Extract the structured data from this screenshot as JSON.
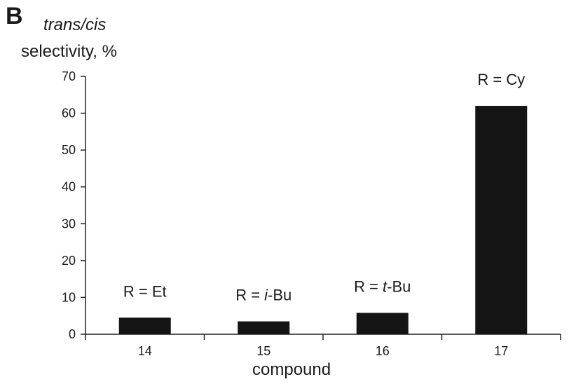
{
  "chart_data": {
    "type": "bar",
    "panel_label": "B",
    "ylabel_line1": "trans/cis",
    "ylabel_line2": "selectivity, %",
    "xlabel": "compound",
    "ylim": [
      0,
      70
    ],
    "yticks": [
      0,
      10,
      20,
      30,
      40,
      50,
      60,
      70
    ],
    "grid": false,
    "categories": [
      "14",
      "15",
      "16",
      "17"
    ],
    "values": [
      4.5,
      3.5,
      5.8,
      62
    ],
    "bar_annotations": [
      {
        "pre": "R = ",
        "sub": "Et",
        "subItalic": "",
        "post": ""
      },
      {
        "pre": "R = ",
        "sub": "",
        "subItalic": "i",
        "post": "-Bu"
      },
      {
        "pre": "R = ",
        "sub": "",
        "subItalic": "t",
        "post": "-Bu"
      },
      {
        "pre": "R = ",
        "sub": "Cy",
        "subItalic": "",
        "post": ""
      }
    ],
    "bar_color": "#141414"
  }
}
